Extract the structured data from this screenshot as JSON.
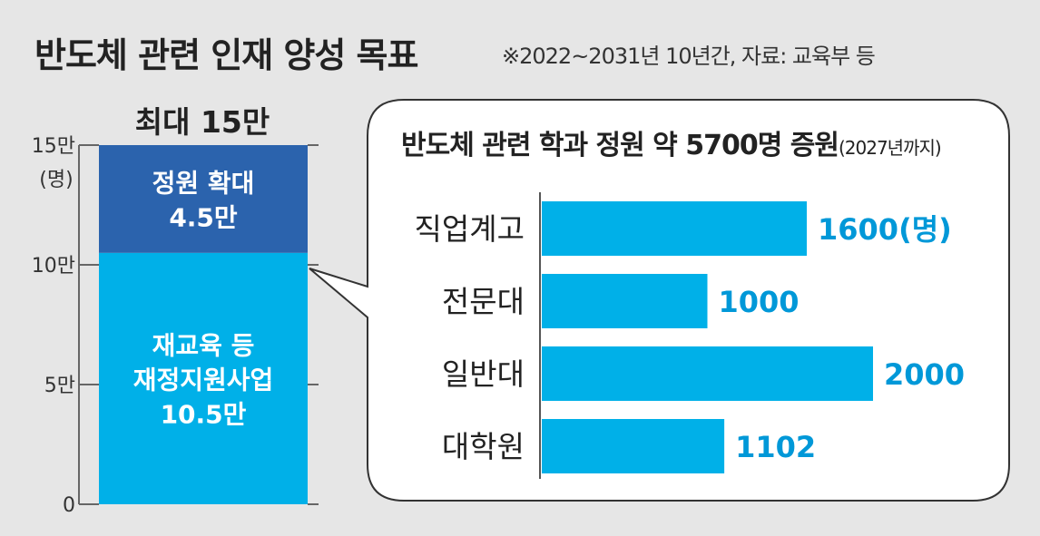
{
  "title": "반도체 관련 인재 양성 목표",
  "source": "※2022~2031년 10년간, 자료: 교육부 등",
  "colors": {
    "dark_blue": "#2b63ad",
    "light_blue": "#00b0e8",
    "value_text": "#0098d8",
    "background": "#e6e6e6"
  },
  "chart_data": [
    {
      "type": "bar",
      "stacked": true,
      "title": "최대 15만",
      "ylabel": "(명)",
      "ylim": [
        0,
        15
      ],
      "y_ticks": [
        "0",
        "5만",
        "10만",
        "15만"
      ],
      "y_tick_values": [
        0,
        5,
        10,
        15
      ],
      "series": [
        {
          "name": "재교육 등 재정지원사업",
          "value": 10.5,
          "label_lines": [
            "재교육 등",
            "재정지원사업",
            "10.5만"
          ],
          "color": "#00b0e8"
        },
        {
          "name": "정원 확대",
          "value": 4.5,
          "label_lines": [
            "정원 확대",
            "4.5만"
          ],
          "color": "#2b63ad"
        }
      ]
    },
    {
      "type": "bar",
      "orientation": "horizontal",
      "title": "반도체 관련 학과 정원 약 5700명 증원",
      "title_note": "(2027년까지)",
      "categories": [
        "직업계고",
        "전문대",
        "일반대",
        "대학원"
      ],
      "values": [
        1600,
        1000,
        2000,
        1102
      ],
      "value_labels": [
        "1600(명)",
        "1000",
        "2000",
        "1102"
      ],
      "xlim": [
        0,
        2000
      ]
    }
  ]
}
